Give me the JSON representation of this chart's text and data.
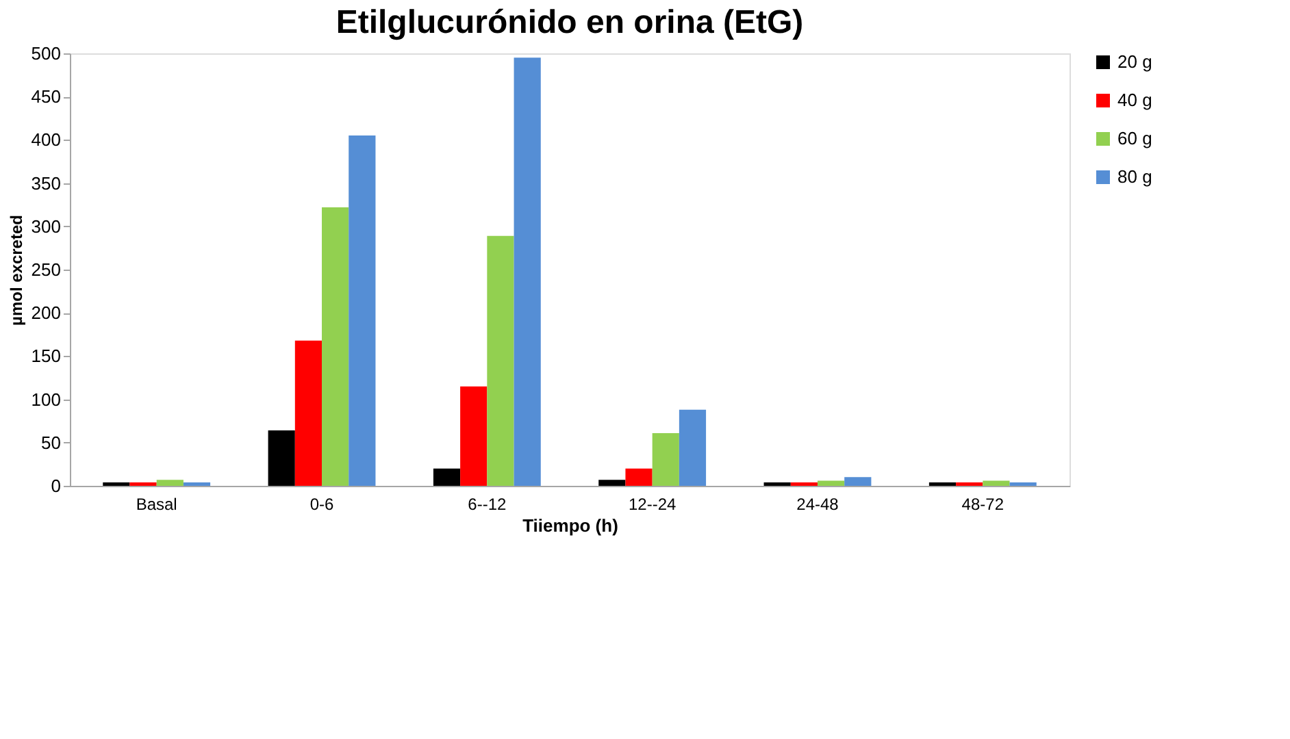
{
  "chart_data": {
    "type": "bar",
    "title": "Etilglucurónido en orina (EtG)",
    "xlabel": "Tiiempo (h)",
    "ylabel": "µmol excreted",
    "categories": [
      "Basal",
      "0-6",
      "6--12",
      "12--24",
      "24-48",
      "48-72"
    ],
    "series": [
      {
        "name": "20 g",
        "color": "#000000",
        "values": [
          4,
          64,
          20,
          7,
          4,
          4
        ]
      },
      {
        "name": "40 g",
        "color": "#ff0000",
        "values": [
          4,
          168,
          115,
          20,
          4,
          4
        ]
      },
      {
        "name": "60 g",
        "color": "#92d050",
        "values": [
          7,
          322,
          289,
          61,
          6,
          6
        ]
      },
      {
        "name": "80 g",
        "color": "#558ed5",
        "values": [
          4,
          405,
          495,
          88,
          10,
          4
        ]
      }
    ],
    "ylim": [
      0,
      500
    ],
    "yticks": [
      0,
      50,
      100,
      150,
      200,
      250,
      300,
      350,
      400,
      450,
      500
    ],
    "grid": false,
    "legend": "top right"
  }
}
